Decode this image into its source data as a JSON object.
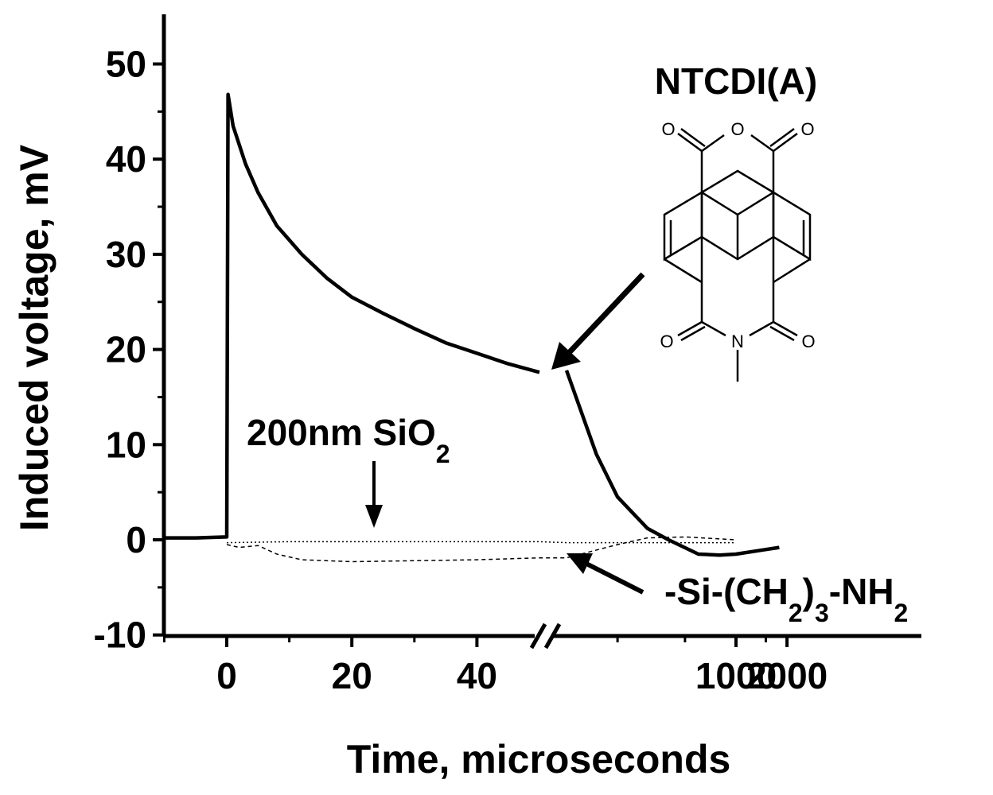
{
  "chart_data": {
    "type": "line",
    "xlabel": "Time, microseconds",
    "ylabel": "Induced voltage, mV",
    "ylim": [
      -10,
      55
    ],
    "y_ticks": [
      "50",
      "40",
      "30",
      "20",
      "10",
      "0",
      "-10"
    ],
    "x_ticks_linear": [
      "0",
      "20",
      "40"
    ],
    "x_ticks_broken": [
      "1000",
      "2000"
    ],
    "axis_break": "between 50 and ~100 microseconds",
    "x_segments": [
      {
        "range": [
          -10,
          52
        ],
        "scale": "linear"
      },
      {
        "range": [
          100,
          2000
        ],
        "scale": "log"
      }
    ],
    "series": [
      {
        "style": "solid-thick",
        "points": [
          [
            -10,
            0.2
          ],
          [
            -5,
            0.2
          ],
          [
            0,
            0.3
          ],
          [
            0.2,
            46.8
          ],
          [
            1,
            43.5
          ],
          [
            3,
            39.5
          ],
          [
            5,
            36.5
          ],
          [
            8,
            33
          ],
          [
            12,
            30
          ],
          [
            16,
            27.5
          ],
          [
            20,
            25.5
          ],
          [
            25,
            23.8
          ],
          [
            30,
            22.2
          ],
          [
            35,
            20.7
          ],
          [
            40,
            19.6
          ],
          [
            45,
            18.5
          ],
          [
            50,
            17.6
          ]
        ]
      },
      {
        "style": "solid-thick",
        "points": [
          [
            100,
            17.8
          ],
          [
            150,
            9
          ],
          [
            200,
            4.5
          ],
          [
            300,
            1.2
          ],
          [
            400,
            0
          ],
          [
            600,
            -1.5
          ],
          [
            800,
            -1.6
          ],
          [
            1000,
            -1.5
          ],
          [
            1400,
            -1.1
          ],
          [
            1800,
            -0.8
          ]
        ]
      },
      {
        "style": "dotted-thin",
        "points": [
          [
            0,
            -0.3
          ],
          [
            10,
            -0.2
          ],
          [
            20,
            -0.2
          ],
          [
            30,
            -0.2
          ],
          [
            40,
            -0.2
          ],
          [
            50,
            -0.2
          ],
          [
            100,
            -0.3
          ],
          [
            300,
            -0.3
          ],
          [
            1000,
            -0.3
          ]
        ]
      },
      {
        "style": "dashed-thin",
        "points": [
          [
            0,
            -0.5
          ],
          [
            2,
            -0.8
          ],
          [
            5,
            -0.6
          ],
          [
            8,
            -1.5
          ],
          [
            12,
            -2.1
          ],
          [
            20,
            -2.3
          ],
          [
            30,
            -2.2
          ],
          [
            40,
            -2.1
          ],
          [
            50,
            -1.9
          ],
          [
            100,
            -1.9
          ],
          [
            200,
            -0.5
          ],
          [
            300,
            0.2
          ],
          [
            500,
            0.3
          ],
          [
            1000,
            0.0
          ]
        ]
      }
    ],
    "annotations": {
      "molecule_title": "NTCDI(A)",
      "sio2_label": "200nm SiO",
      "sio2_sub": "2",
      "amine_prefix": "-Si-(CH",
      "amine_sub1": "2",
      "amine_mid": ")",
      "amine_sub2": "3",
      "amine_suffix": "-NH",
      "amine_sub3": "2"
    },
    "molecule_atoms": {
      "o": "O",
      "n": "N"
    },
    "colors": {
      "line": "#000000",
      "background": "#ffffff"
    }
  }
}
